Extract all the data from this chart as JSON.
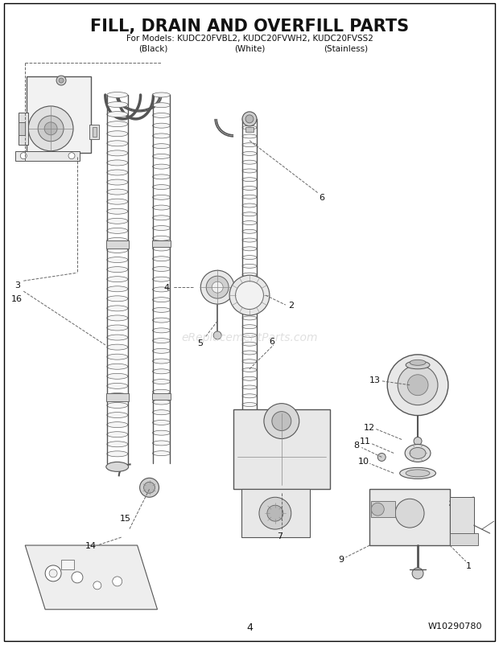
{
  "title": "FILL, DRAIN AND OVERFILL PARTS",
  "subtitle_line1": "For Models: KUDC20FVBL2, KUDC20FVWH2, KUDC20FVSS2",
  "subtitle_line2_parts": [
    "(Black)",
    "(White)",
    "(Stainless)"
  ],
  "page_number": "4",
  "part_number": "W10290780",
  "background_color": "#ffffff",
  "border_color": "#000000",
  "title_fontsize": 15,
  "subtitle_fontsize": 7.5,
  "watermark_text": "eReplacementParts.com",
  "fig_width": 6.2,
  "fig_height": 8.03,
  "dpi": 100
}
